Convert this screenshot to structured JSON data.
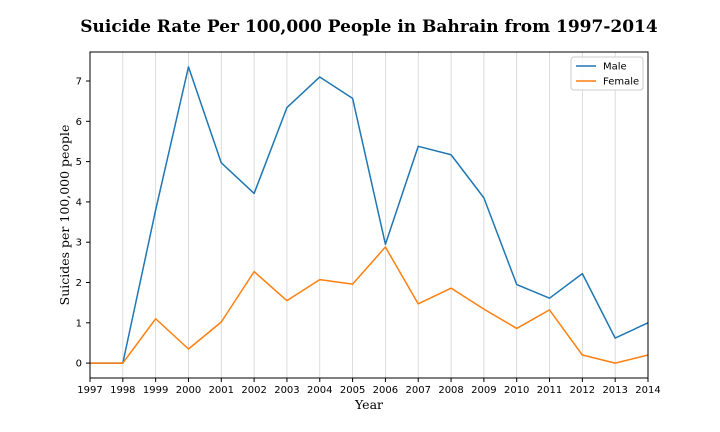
{
  "chart_data": {
    "type": "line",
    "title": "Suicide Rate Per 100,000 People in Bahrain from 1997-2014",
    "xlabel": "Year",
    "ylabel": "Suicides per 100,000 people",
    "x": [
      1997,
      1998,
      1999,
      2000,
      2001,
      2002,
      2003,
      2004,
      2005,
      2006,
      2007,
      2008,
      2009,
      2010,
      2011,
      2012,
      2013,
      2014
    ],
    "xlim": [
      1997,
      2014
    ],
    "ylim": [
      -0.37,
      7.72
    ],
    "yticks": [
      0,
      1,
      2,
      3,
      4,
      5,
      6,
      7
    ],
    "grid": "vertical",
    "legend_position": "top-right",
    "series": [
      {
        "name": "Male",
        "color": "#1f77b4",
        "values": [
          0.0,
          0.0,
          3.8,
          7.35,
          4.97,
          4.21,
          6.34,
          7.1,
          6.57,
          2.95,
          5.38,
          5.17,
          4.1,
          1.95,
          1.61,
          2.22,
          0.62,
          1.0
        ]
      },
      {
        "name": "Female",
        "color": "#ff7f0e",
        "values": [
          0.0,
          0.0,
          1.1,
          0.35,
          1.02,
          2.27,
          1.55,
          2.07,
          1.96,
          2.88,
          1.47,
          1.86,
          1.34,
          0.86,
          1.32,
          0.2,
          0.0,
          0.2
        ]
      }
    ]
  }
}
